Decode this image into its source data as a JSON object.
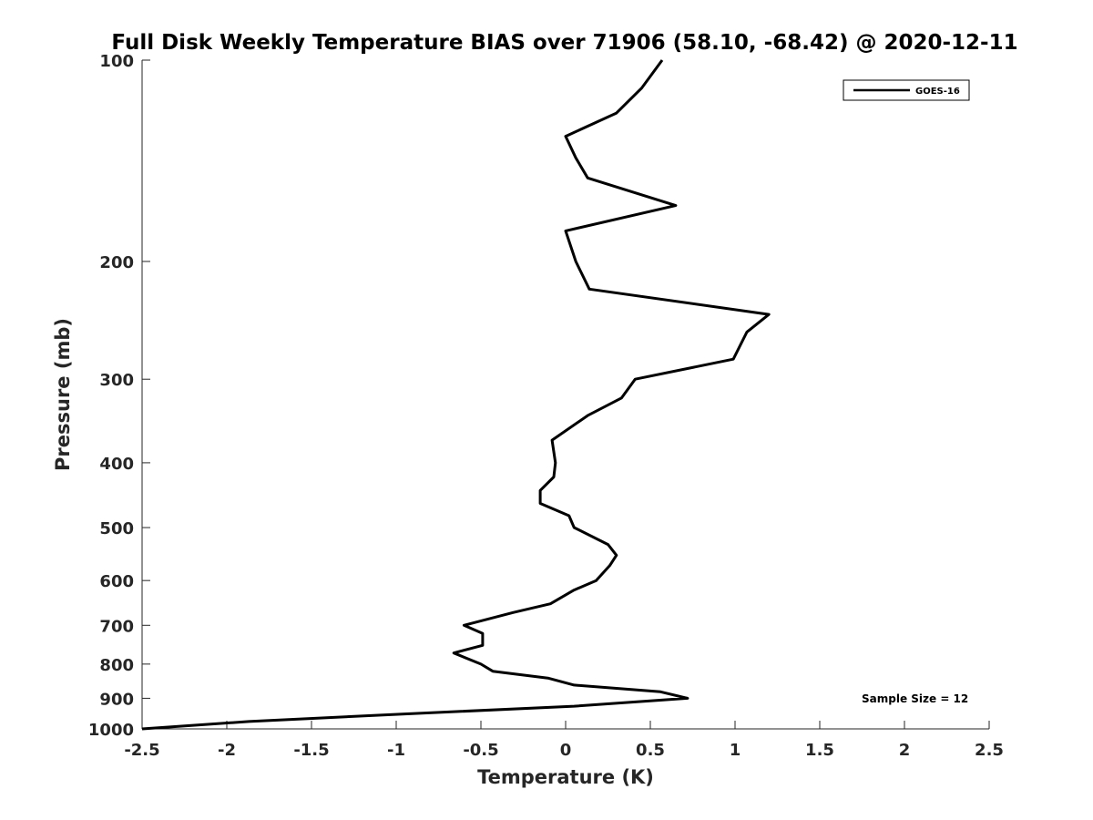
{
  "chart_data": {
    "type": "line",
    "title": "Full Disk Weekly Temperature BIAS over 71906 (58.10, -68.42) @ 2020-12-11",
    "xlabel": "Temperature (K)",
    "ylabel": "Pressure (mb)",
    "xlim": [
      -2.5,
      2.5
    ],
    "ylim": [
      100,
      1000
    ],
    "y_scale": "log",
    "y_reversed": true,
    "x_ticks": [
      "-2.5",
      "-2",
      "-1.5",
      "-1",
      "-0.5",
      "0",
      "0.5",
      "1",
      "1.5",
      "2",
      "2.5"
    ],
    "y_ticks": [
      "100",
      "200",
      "300",
      "400",
      "500",
      "600",
      "700",
      "800",
      "900",
      "1000"
    ],
    "grid": false,
    "legend_position": "top-right",
    "series": [
      {
        "name": "GOES-16",
        "color": "#000000",
        "x": [
          0.57,
          0.45,
          0.3,
          0.0,
          0.06,
          0.13,
          0.65,
          0.0,
          0.06,
          0.14,
          1.2,
          1.07,
          0.99,
          0.41,
          0.33,
          0.13,
          -0.08,
          -0.06,
          -0.07,
          -0.15,
          -0.15,
          0.02,
          0.05,
          0.25,
          0.3,
          0.26,
          0.18,
          0.05,
          -0.09,
          -0.31,
          -0.6,
          -0.49,
          -0.49,
          -0.66,
          -0.5,
          -0.43,
          -0.1,
          0.05,
          0.56,
          0.72,
          0.05,
          -0.95,
          -1.87,
          -2.5
        ],
        "y": [
          100,
          110,
          120,
          130,
          140,
          150,
          165,
          180,
          200,
          220,
          240,
          255,
          280,
          300,
          320,
          340,
          370,
          400,
          420,
          440,
          460,
          480,
          500,
          530,
          550,
          570,
          600,
          620,
          650,
          670,
          700,
          720,
          750,
          770,
          800,
          820,
          840,
          860,
          880,
          900,
          925,
          950,
          975,
          1000
        ]
      }
    ],
    "annotations": [
      "Sample Size = 12"
    ]
  }
}
